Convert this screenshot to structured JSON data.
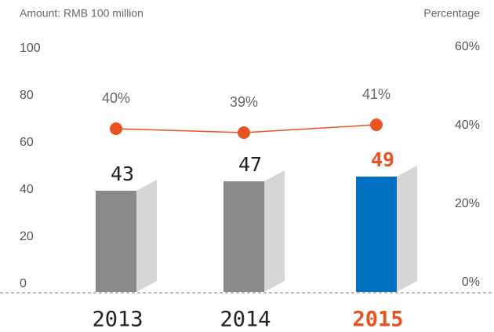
{
  "chart_data": {
    "type": "bar",
    "y_axis_label": "Amount: RMB 100 million",
    "y2_axis_label": "Percentage",
    "categories": [
      "2013",
      "2014",
      "2015"
    ],
    "category_colors": [
      "#222222",
      "#222222",
      "#e8531f"
    ],
    "series": [
      {
        "type": "bar",
        "values": [
          43,
          47,
          49
        ],
        "colors": [
          "#8a8a8c",
          "#8a8a8c",
          "#0070c0"
        ],
        "side_color": "#d6d6d8",
        "label_colors": [
          "#222222",
          "#222222",
          "#e8531f"
        ]
      },
      {
        "type": "line",
        "axis": "y2",
        "color": "#e8531f",
        "values": [
          40,
          39,
          41
        ],
        "value_labels": [
          "40%",
          "39%",
          "41%"
        ]
      }
    ],
    "ylim": [
      0,
      100
    ],
    "yticks": [
      0,
      20,
      40,
      60,
      80,
      100
    ],
    "y2lim": [
      0,
      60
    ],
    "y2ticks": [
      {
        "value": 0,
        "label": "0%"
      },
      {
        "value": 20,
        "label": "20%"
      },
      {
        "value": 40,
        "label": "40%"
      },
      {
        "value": 60,
        "label": "60%"
      }
    ]
  }
}
